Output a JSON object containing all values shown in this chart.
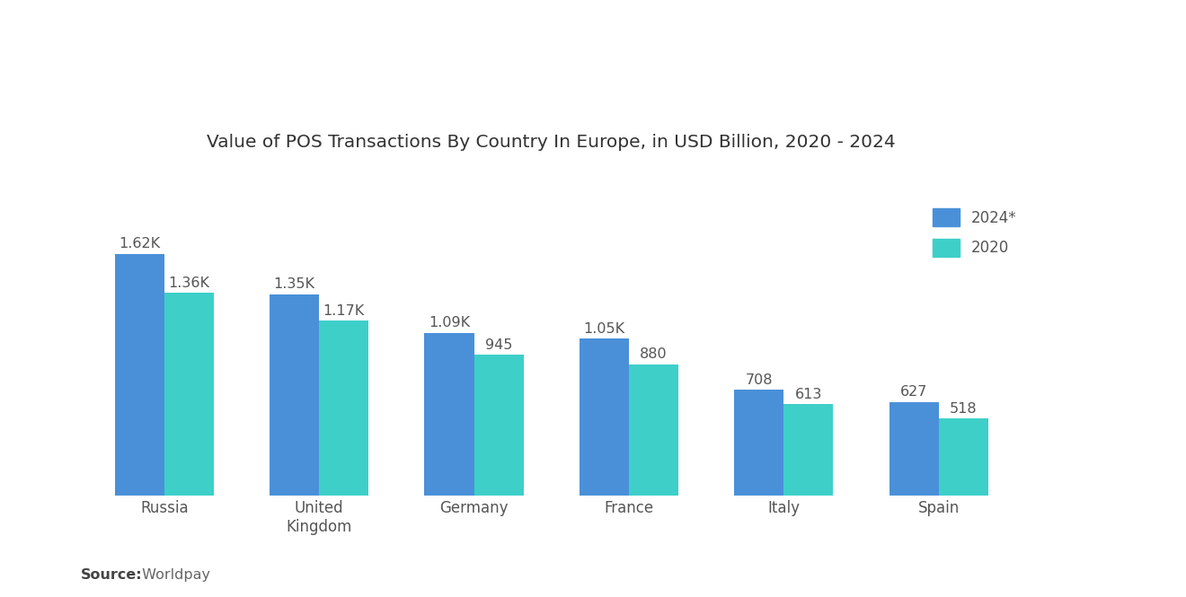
{
  "title": "Value of POS Transactions By Country In Europe, in USD Billion, 2020 - 2024",
  "categories": [
    "Russia",
    "United\nKingdom",
    "Germany",
    "France",
    "Italy",
    "Spain"
  ],
  "values_2024": [
    1620,
    1350,
    1090,
    1050,
    708,
    627
  ],
  "values_2020": [
    1360,
    1170,
    945,
    880,
    613,
    518
  ],
  "labels_2024": [
    "1.62K",
    "1.35K",
    "1.09K",
    "1.05K",
    "708",
    "627"
  ],
  "labels_2020": [
    "1.36K",
    "1.17K",
    "945",
    "880",
    "613",
    "518"
  ],
  "color_2024": "#4A90D9",
  "color_2020": "#3ECFC9",
  "legend_2024": "2024*",
  "legend_2020": "2020",
  "source_bold": "Source:",
  "source_normal": " Worldpay",
  "background_color": "#FFFFFF",
  "ylim": [
    0,
    2200
  ],
  "bar_width": 0.32,
  "title_fontsize": 14.5,
  "label_fontsize": 11.5,
  "tick_fontsize": 12,
  "legend_fontsize": 12,
  "source_fontsize": 11.5,
  "text_color": "#555555"
}
